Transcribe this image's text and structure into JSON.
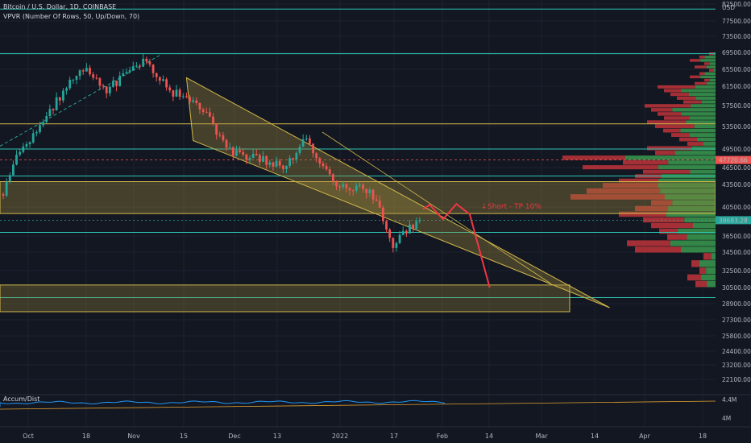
{
  "header": {
    "symbol_line": "Bitcoin / U.S. Dollar, 1D, COINBASE",
    "indicator_line": "VPVR (Number Of Rows, 50, Up/Down, 70)"
  },
  "colors": {
    "background": "#131722",
    "up": "#26a69a",
    "down": "#ef5350",
    "zone_fill": "#a08c3c",
    "zone_stroke": "#d4b84a",
    "cyan_line": "#2cc5b3",
    "projection": "#f23645",
    "vp_up": "#3a9a4e",
    "vp_down": "#c0343a",
    "accum_line": "#2196f3"
  },
  "price_axis": {
    "currency": "USD",
    "ticks": [
      "82500.00",
      "77500.00",
      "73500.00",
      "69500.00",
      "65500.00",
      "61500.00",
      "57500.00",
      "53500.00",
      "49500.00",
      "46500.00",
      "43500.00",
      "40500.00",
      "36500.00",
      "34500.00",
      "32500.00",
      "30500.00",
      "28900.00",
      "27300.00",
      "25800.00",
      "24400.00",
      "23200.00",
      "22100.00"
    ],
    "badge_upper": "47720.66",
    "badge_current": "38683.28"
  },
  "time_axis": {
    "labels": [
      "Oct",
      "18",
      "Nov",
      "15",
      "Dec",
      "13",
      "2022",
      "17",
      "Feb",
      "14",
      "Mar",
      "14",
      "Apr",
      "18"
    ]
  },
  "annotation": {
    "text": "Short - TP 10%"
  },
  "lower_pane": {
    "title": "Accum/Dist",
    "ticks": [
      "4.4M",
      "4M"
    ]
  },
  "chart_data": {
    "type": "candlestick",
    "symbol": "BTCUSD",
    "interval": "1D",
    "exchange": "COINBASE",
    "approx_closes": [
      {
        "date": "2021-09-27",
        "close": 42200
      },
      {
        "date": "2021-10-01",
        "close": 48000
      },
      {
        "date": "2021-10-10",
        "close": 55000
      },
      {
        "date": "2021-10-20",
        "close": 66000
      },
      {
        "date": "2021-10-28",
        "close": 61000
      },
      {
        "date": "2021-11-09",
        "close": 67500
      },
      {
        "date": "2021-11-16",
        "close": 60500
      },
      {
        "date": "2021-11-25",
        "close": 57500
      },
      {
        "date": "2021-12-04",
        "close": 49000
      },
      {
        "date": "2021-12-20",
        "close": 46800
      },
      {
        "date": "2021-12-27",
        "close": 51000
      },
      {
        "date": "2022-01-05",
        "close": 43500
      },
      {
        "date": "2022-01-15",
        "close": 43000
      },
      {
        "date": "2022-01-22",
        "close": 35500
      },
      {
        "date": "2022-01-30",
        "close": 38683
      }
    ],
    "horizontal_levels": [
      81000,
      69200,
      54000,
      49500,
      45000,
      37000,
      29500
    ],
    "zones": [
      {
        "from": 39600,
        "to": 44000
      },
      {
        "from": 28100,
        "to": 30800
      }
    ],
    "descending_channel": {
      "upper_start": {
        "date": "2021-11-21",
        "price": 63500
      },
      "lower_start": {
        "date": "2021-11-23",
        "price": 51000
      },
      "apex": {
        "date": "2022-03-28",
        "price": 28500
      }
    },
    "projection_path": [
      {
        "date": "2022-01-31",
        "price": 40200
      },
      {
        "date": "2022-02-02",
        "price": 40800
      },
      {
        "date": "2022-02-06",
        "price": 38800
      },
      {
        "date": "2022-02-10",
        "price": 40900
      },
      {
        "date": "2022-02-14",
        "price": 39500
      },
      {
        "date": "2022-02-20",
        "price": 30500
      }
    ]
  }
}
